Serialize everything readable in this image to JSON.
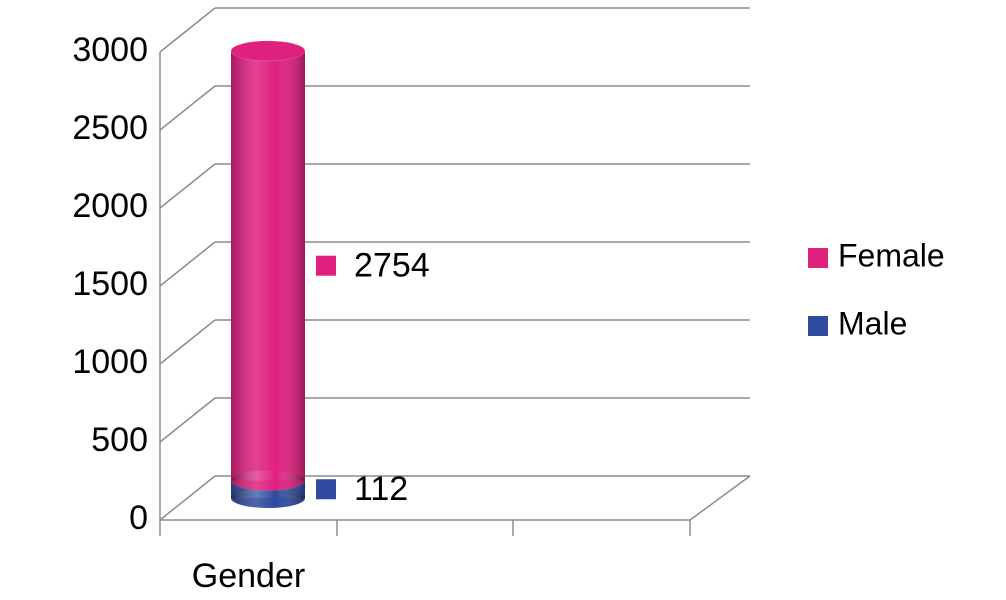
{
  "chart_data": {
    "type": "bar",
    "stacked": true,
    "categories": [
      "Gender"
    ],
    "series": [
      {
        "name": "Female",
        "color": "#e0207f",
        "values": [
          2754
        ]
      },
      {
        "name": "Male",
        "color": "#2e4a9e",
        "values": [
          112
        ]
      }
    ],
    "ylim": [
      0,
      3000
    ],
    "yticks": [
      0,
      500,
      1000,
      1500,
      2000,
      2500,
      3000
    ],
    "grid": true,
    "legend": "right"
  }
}
